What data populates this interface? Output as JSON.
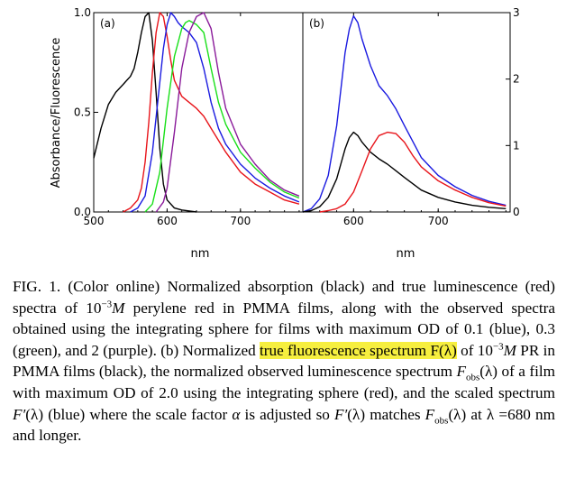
{
  "figure": {
    "ylabel_left": "Absorbance/Fluorescence",
    "colors": {
      "black": "#000000",
      "red": "#e8141a",
      "blue": "#1a1ae0",
      "green": "#18e018",
      "purple": "#8a1a9a"
    }
  },
  "chart_data": [
    {
      "type": "line",
      "panel_label": "(a)",
      "xlabel": "nm",
      "ylabel": "Absorbance/Fluorescence",
      "xlim": [
        500,
        785
      ],
      "ylim": [
        0,
        1.0
      ],
      "xticks": [
        "500",
        "600",
        "700"
      ],
      "xtick_values": [
        500,
        600,
        700
      ],
      "yticks": [
        "0.0",
        "0.5",
        "1.0"
      ],
      "ytick_values": [
        0,
        0.5,
        1.0
      ],
      "series": [
        {
          "color": "#000000",
          "x": [
            500,
            510,
            520,
            530,
            540,
            545,
            550,
            555,
            560,
            565,
            570,
            575,
            580,
            585,
            590,
            595,
            600,
            610,
            620,
            640
          ],
          "y": [
            0.27,
            0.42,
            0.54,
            0.6,
            0.64,
            0.66,
            0.68,
            0.72,
            0.8,
            0.9,
            0.98,
            1.0,
            0.86,
            0.6,
            0.32,
            0.14,
            0.06,
            0.02,
            0.01,
            0.0
          ]
        },
        {
          "color": "#e8141a",
          "x": [
            540,
            550,
            560,
            565,
            570,
            575,
            580,
            585,
            590,
            595,
            600,
            605,
            610,
            620,
            630,
            640,
            650,
            660,
            680,
            700,
            720,
            740,
            760,
            780
          ],
          "y": [
            0.0,
            0.02,
            0.06,
            0.12,
            0.25,
            0.45,
            0.7,
            0.9,
            1.0,
            0.98,
            0.88,
            0.76,
            0.66,
            0.58,
            0.55,
            0.52,
            0.48,
            0.42,
            0.3,
            0.2,
            0.14,
            0.1,
            0.06,
            0.04
          ]
        },
        {
          "color": "#1a1ae0",
          "x": [
            550,
            560,
            570,
            580,
            590,
            595,
            600,
            605,
            610,
            615,
            620,
            630,
            640,
            650,
            660,
            670,
            680,
            700,
            720,
            740,
            760,
            780
          ],
          "y": [
            0.0,
            0.02,
            0.08,
            0.3,
            0.65,
            0.82,
            0.94,
            1.0,
            0.98,
            0.95,
            0.93,
            0.9,
            0.85,
            0.72,
            0.55,
            0.42,
            0.34,
            0.24,
            0.17,
            0.12,
            0.08,
            0.05
          ]
        },
        {
          "color": "#18e018",
          "x": [
            570,
            580,
            590,
            600,
            610,
            620,
            625,
            630,
            640,
            650,
            660,
            670,
            680,
            700,
            720,
            740,
            760,
            780
          ],
          "y": [
            0.0,
            0.04,
            0.2,
            0.52,
            0.78,
            0.92,
            0.95,
            0.96,
            0.94,
            0.9,
            0.72,
            0.55,
            0.44,
            0.3,
            0.22,
            0.15,
            0.1,
            0.07
          ]
        },
        {
          "color": "#8a1a9a",
          "x": [
            585,
            595,
            600,
            610,
            620,
            630,
            640,
            650,
            660,
            670,
            680,
            700,
            720,
            740,
            760,
            780
          ],
          "y": [
            0.0,
            0.05,
            0.12,
            0.4,
            0.72,
            0.9,
            0.98,
            1.0,
            0.92,
            0.7,
            0.52,
            0.34,
            0.24,
            0.16,
            0.11,
            0.08
          ]
        }
      ]
    },
    {
      "type": "line",
      "panel_label": "(b)",
      "xlabel": "nm",
      "xlim": [
        540,
        785
      ],
      "ylim": [
        0,
        3
      ],
      "xticks": [
        "600",
        "700"
      ],
      "xtick_values": [
        600,
        700
      ],
      "yticks_right": [
        "0",
        "1",
        "2",
        "3"
      ],
      "ytick_values": [
        0,
        1,
        2,
        3
      ],
      "series": [
        {
          "color": "#1a1ae0",
          "x": [
            540,
            550,
            560,
            570,
            580,
            590,
            595,
            600,
            605,
            610,
            620,
            630,
            640,
            650,
            660,
            680,
            700,
            720,
            740,
            760,
            780
          ],
          "y": [
            0.0,
            0.05,
            0.2,
            0.55,
            1.3,
            2.4,
            2.75,
            2.95,
            2.85,
            2.6,
            2.2,
            1.9,
            1.75,
            1.55,
            1.3,
            0.82,
            0.55,
            0.38,
            0.25,
            0.16,
            0.1
          ]
        },
        {
          "color": "#000000",
          "x": [
            540,
            550,
            560,
            570,
            580,
            590,
            595,
            600,
            605,
            610,
            620,
            630,
            640,
            650,
            660,
            680,
            700,
            720,
            740,
            760,
            780
          ],
          "y": [
            0.0,
            0.02,
            0.08,
            0.22,
            0.5,
            0.95,
            1.12,
            1.2,
            1.15,
            1.05,
            0.9,
            0.8,
            0.72,
            0.62,
            0.52,
            0.33,
            0.22,
            0.15,
            0.1,
            0.07,
            0.05
          ]
        },
        {
          "color": "#e8141a",
          "x": [
            560,
            570,
            580,
            590,
            600,
            610,
            620,
            630,
            640,
            650,
            660,
            670,
            680,
            700,
            720,
            740,
            760,
            780
          ],
          "y": [
            0.0,
            0.02,
            0.05,
            0.12,
            0.3,
            0.62,
            0.95,
            1.15,
            1.2,
            1.18,
            1.05,
            0.85,
            0.68,
            0.47,
            0.33,
            0.22,
            0.14,
            0.09
          ]
        }
      ]
    }
  ],
  "caption": {
    "p1": "FIG. 1. (Color online) Normalized absorption (black) and true luminescence (red) spectra of 10",
    "p1_sup": "−3",
    "p1_M": "M",
    "p2": " perylene red in PMMA films, along with the observed spectra obtained using the integrating sphere for films with maximum OD of 0.1 (blue), 0.3 (green), and 2 (purple). (b) Normalized ",
    "highlight": "true fluorescence spectrum F(λ)",
    "p3": " of 10",
    "p3_sup": "−3",
    "p3_M": "M",
    "p4": " PR in PMMA films (black), the normalized observed luminescence spectrum ",
    "Fobs_F": "F",
    "Fobs_sub": "obs",
    "p5": "(λ) of a film with maximum OD of 2.0 using the integrating sphere (red), and the scaled spectrum ",
    "Fprime": "F′",
    "p6": "(λ) (blue) where the scale factor ",
    "alpha": "α",
    "p7": " is adjusted so ",
    "Fprime2": "F′",
    "p8": "(λ) matches ",
    "Fobs2_F": "F",
    "Fobs2_sub": "obs",
    "p9": "(λ) at λ =680 nm and longer."
  }
}
